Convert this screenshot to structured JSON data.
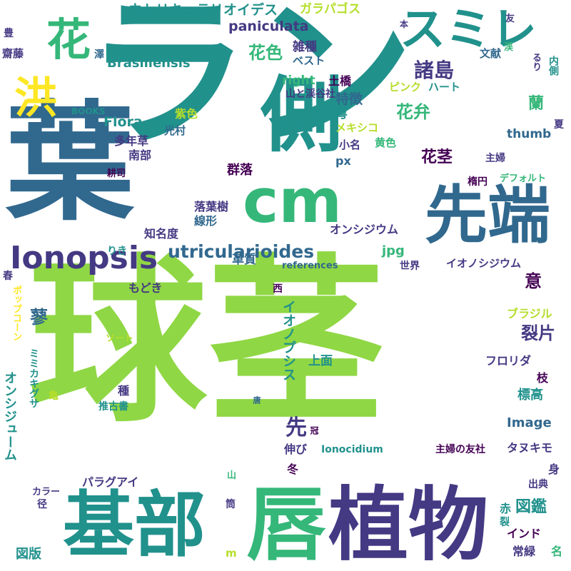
{
  "palette": {
    "lime": "#8fd744",
    "light_green": "#b5de2b",
    "yellow": "#fde725",
    "green": "#35b779",
    "teal": "#21918c",
    "blue": "#31688e",
    "indigo": "#443983",
    "purple": "#440154"
  },
  "words": [
    {
      "text": "球茎",
      "color": "lime"
    },
    {
      "text": "ラン",
      "color": "teal"
    },
    {
      "text": "葉",
      "color": "blue"
    },
    {
      "text": "植物",
      "color": "indigo"
    },
    {
      "text": "唇",
      "color": "green"
    },
    {
      "text": "基部",
      "color": "teal"
    },
    {
      "text": "先端",
      "color": "blue"
    },
    {
      "text": "側",
      "color": "teal"
    },
    {
      "text": "cm",
      "color": "green"
    },
    {
      "text": "花",
      "color": "green"
    },
    {
      "text": "スミレ",
      "color": "teal"
    },
    {
      "text": "Ionopsis",
      "color": "indigo"
    },
    {
      "text": "洪",
      "color": "yellow"
    },
    {
      "text": "utricularioides",
      "color": "blue"
    },
    {
      "text": "ウトリキュラリオイデス",
      "color": "teal"
    },
    {
      "text": "ガラパゴス",
      "color": "light_green"
    },
    {
      "text": "paniculata",
      "color": "indigo"
    },
    {
      "text": "Brasiliensis",
      "color": "teal"
    },
    {
      "text": "花色",
      "color": "green"
    },
    {
      "text": "雑種",
      "color": "indigo"
    },
    {
      "text": "ベスト",
      "color": "blue"
    },
    {
      "text": "諸島",
      "color": "indigo"
    },
    {
      "text": "right",
      "color": "green"
    },
    {
      "text": "土橋",
      "color": "purple"
    },
    {
      "text": "山と渓谷社",
      "color": "indigo"
    },
    {
      "text": "ピンク",
      "color": "light_green"
    },
    {
      "text": "ハート",
      "color": "teal"
    },
    {
      "text": "特徴",
      "color": "blue"
    },
    {
      "text": "花弁",
      "color": "green"
    },
    {
      "text": "萼",
      "color": "teal"
    },
    {
      "text": "メキシコ",
      "color": "light_green"
    },
    {
      "text": "BOOKS",
      "color": "teal"
    },
    {
      "text": "Flora",
      "color": "teal"
    },
    {
      "text": "紫色",
      "color": "light_green"
    },
    {
      "text": "光村",
      "color": "blue"
    },
    {
      "text": "多年草",
      "color": "indigo"
    },
    {
      "text": "南部",
      "color": "indigo"
    },
    {
      "text": "耕司",
      "color": "purple"
    },
    {
      "text": "小名",
      "color": "indigo"
    },
    {
      "text": "黄色",
      "color": "green"
    },
    {
      "text": "thumb",
      "color": "blue"
    },
    {
      "text": "花茎",
      "color": "purple"
    },
    {
      "text": "主婦",
      "color": "indigo"
    },
    {
      "text": "楕円",
      "color": "purple"
    },
    {
      "text": "デフォルト",
      "color": "green"
    },
    {
      "text": "群落",
      "color": "purple"
    },
    {
      "text": "px",
      "color": "blue"
    },
    {
      "text": "落葉樹",
      "color": "indigo"
    },
    {
      "text": "線形",
      "color": "blue"
    },
    {
      "text": "知名度",
      "color": "indigo"
    },
    {
      "text": "りき",
      "color": "teal"
    },
    {
      "text": "オンシジウム",
      "color": "indigo"
    },
    {
      "text": "jpg",
      "color": "green"
    },
    {
      "text": "革質",
      "color": "blue"
    },
    {
      "text": "references",
      "color": "blue"
    },
    {
      "text": "世界",
      "color": "indigo"
    },
    {
      "text": "イオノシジウム",
      "color": "indigo"
    },
    {
      "text": "もどき",
      "color": "indigo"
    },
    {
      "text": "意",
      "color": "purple"
    },
    {
      "text": "西",
      "color": "purple"
    },
    {
      "text": "蓼",
      "color": "blue"
    },
    {
      "text": "裂片",
      "color": "indigo"
    },
    {
      "text": "ブラジル",
      "color": "light_green"
    },
    {
      "text": "ソート",
      "color": "light_green"
    },
    {
      "text": "上面",
      "color": "teal"
    },
    {
      "text": "フロリダ",
      "color": "indigo"
    },
    {
      "text": "枝",
      "color": "purple"
    },
    {
      "text": "種",
      "color": "indigo"
    },
    {
      "text": "推古書",
      "color": "teal"
    },
    {
      "text": "標高",
      "color": "teal"
    },
    {
      "text": "Image",
      "color": "blue"
    },
    {
      "text": "先",
      "color": "indigo"
    },
    {
      "text": "冠",
      "color": "purple"
    },
    {
      "text": "伸び",
      "color": "indigo"
    },
    {
      "text": "Ionocidium",
      "color": "teal"
    },
    {
      "text": "主婦の友社",
      "color": "purple"
    },
    {
      "text": "タヌキモ",
      "color": "indigo"
    },
    {
      "text": "冬",
      "color": "purple"
    },
    {
      "text": "身",
      "color": "indigo"
    },
    {
      "text": "パラグアイ",
      "color": "indigo"
    },
    {
      "text": "カラー",
      "color": "indigo"
    },
    {
      "text": "径",
      "color": "indigo"
    },
    {
      "text": "山",
      "color": "green"
    },
    {
      "text": "筒",
      "color": "indigo"
    },
    {
      "text": "出典",
      "color": "indigo"
    },
    {
      "text": "赤",
      "color": "teal"
    },
    {
      "text": "裂",
      "color": "teal"
    },
    {
      "text": "図鑑",
      "color": "teal"
    },
    {
      "text": "インド",
      "color": "purple"
    },
    {
      "text": "常緑",
      "color": "indigo"
    },
    {
      "text": "名",
      "color": "green"
    },
    {
      "text": "図版",
      "color": "teal"
    },
    {
      "text": "m",
      "color": "light_green"
    },
    {
      "text": "豊",
      "color": "indigo"
    },
    {
      "text": "齋藤",
      "color": "indigo"
    },
    {
      "text": "澤",
      "color": "blue"
    },
    {
      "text": "本",
      "color": "indigo"
    },
    {
      "text": "友",
      "color": "indigo"
    },
    {
      "text": "文献",
      "color": "blue"
    },
    {
      "text": "渓",
      "color": "green"
    },
    {
      "text": "るり",
      "color": "indigo"
    },
    {
      "text": "内側",
      "color": "teal"
    },
    {
      "text": "蘭",
      "color": "green"
    },
    {
      "text": "夏",
      "color": "indigo"
    },
    {
      "text": "春",
      "color": "indigo"
    },
    {
      "text": "オンシジューム",
      "color": "teal"
    },
    {
      "text": "ポップコーン",
      "color": "yellow"
    },
    {
      "text": "ミミカキグサ",
      "color": "teal"
    },
    {
      "text": "亀",
      "color": "light_green"
    },
    {
      "text": "イオノプシス",
      "color": "teal"
    },
    {
      "text": "唐",
      "color": "blue"
    }
  ]
}
